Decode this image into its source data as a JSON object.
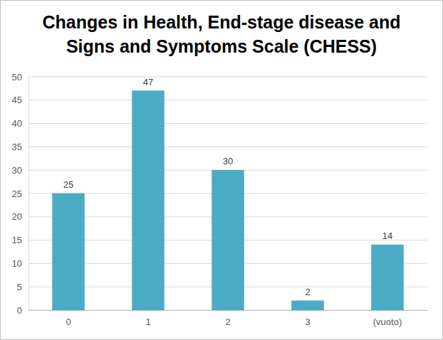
{
  "chart_data": {
    "type": "bar",
    "title": "Changes in Health, End-stage disease and Signs and Symptoms Scale (CHESS)",
    "categories": [
      "0",
      "1",
      "2",
      "3",
      "(vuoto)"
    ],
    "values": [
      25,
      47,
      30,
      2,
      14
    ],
    "color": "#4bacc6",
    "ylim": [
      0,
      50
    ],
    "yticks": [
      0,
      5,
      10,
      15,
      20,
      25,
      30,
      35,
      40,
      45,
      50
    ],
    "grid": true,
    "data_labels": true
  }
}
